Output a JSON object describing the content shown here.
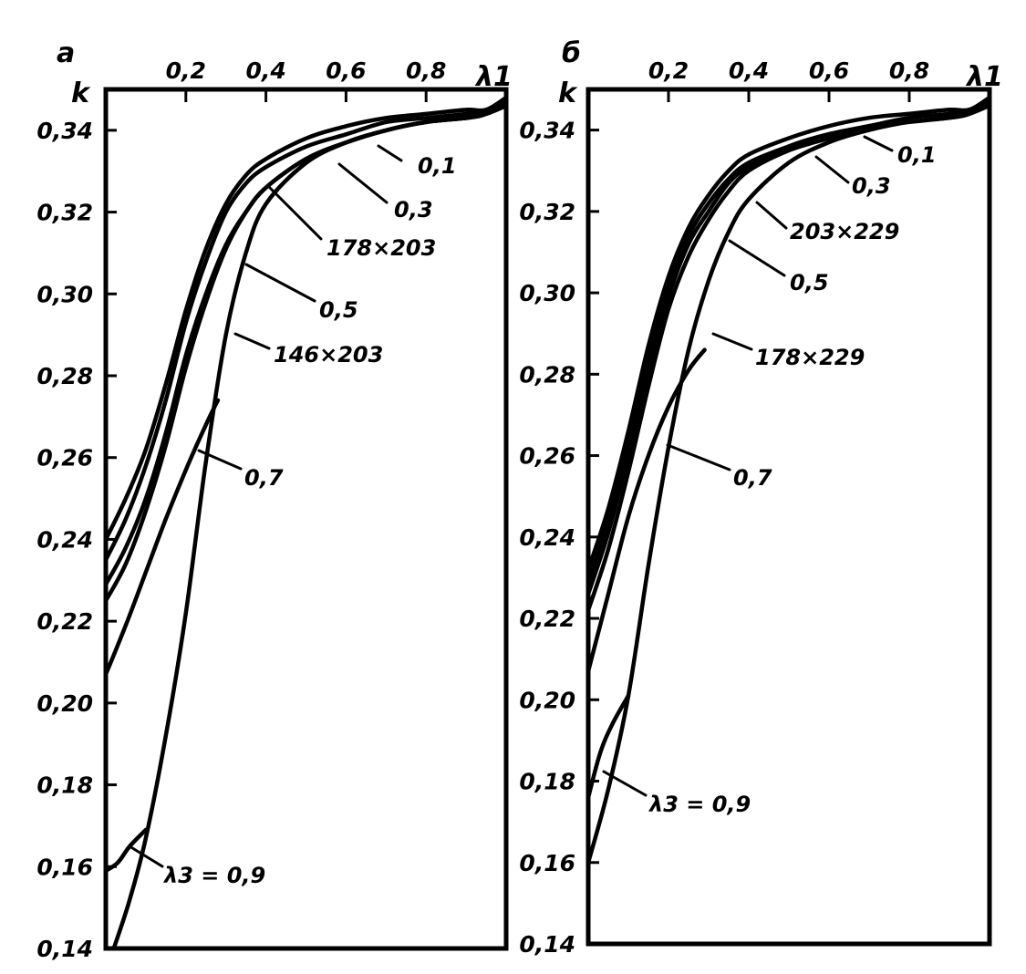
{
  "chart_data": [
    {
      "type": "line",
      "panel_label": "a",
      "xlabel": "λ1",
      "ylabel": "k",
      "xlim": [
        0,
        1.0
      ],
      "ylim": [
        0.14,
        0.35
      ],
      "x_ticks": [
        0.2,
        0.4,
        0.6,
        0.8
      ],
      "x_tick_labels": [
        "0,2",
        "0,4",
        "0,6",
        "0,8"
      ],
      "y_ticks": [
        0.14,
        0.16,
        0.18,
        0.2,
        0.22,
        0.24,
        0.26,
        0.28,
        0.3,
        0.32,
        0.34
      ],
      "y_tick_labels": [
        "0,14",
        "0,16",
        "0,18",
        "0,20",
        "0,22",
        "0,24",
        "0,26",
        "0,28",
        "0,30",
        "0,32",
        "0,34"
      ],
      "grid": false,
      "series": [
        {
          "name": "0,1",
          "x": [
            0,
            0.05,
            0.1,
            0.15,
            0.2,
            0.25,
            0.3,
            0.35,
            0.4,
            0.5,
            0.6,
            0.7,
            0.8,
            0.9,
            0.95,
            1.0
          ],
          "y": [
            0.24,
            0.25,
            0.262,
            0.278,
            0.296,
            0.311,
            0.322,
            0.329,
            0.333,
            0.338,
            0.341,
            0.343,
            0.344,
            0.345,
            0.345,
            0.348
          ]
        },
        {
          "name": "0,3",
          "x": [
            0,
            0.05,
            0.1,
            0.15,
            0.2,
            0.25,
            0.3,
            0.35,
            0.4,
            0.5,
            0.6,
            0.7,
            0.8,
            0.9,
            0.95,
            1.0
          ],
          "y": [
            0.235,
            0.245,
            0.258,
            0.274,
            0.293,
            0.308,
            0.32,
            0.327,
            0.331,
            0.336,
            0.339,
            0.342,
            0.343,
            0.344,
            0.345,
            0.347
          ]
        },
        {
          "name": "0,5",
          "x": [
            0,
            0.05,
            0.1,
            0.15,
            0.2,
            0.25,
            0.3,
            0.35,
            0.4,
            0.5,
            0.6,
            0.7,
            0.8,
            0.9,
            0.95,
            1.0
          ],
          "y": [
            0.229,
            0.238,
            0.25,
            0.266,
            0.285,
            0.3,
            0.312,
            0.32,
            0.326,
            0.333,
            0.337,
            0.34,
            0.342,
            0.343,
            0.344,
            0.347
          ]
        },
        {
          "name": "0,7",
          "x": [
            0,
            0.05,
            0.1,
            0.15,
            0.2,
            0.25,
            0.28
          ],
          "y": [
            0.207,
            0.219,
            0.232,
            0.245,
            0.257,
            0.268,
            0.274
          ]
        },
        {
          "name": "λ3 = 0,9",
          "x": [
            0,
            0.03,
            0.06,
            0.1
          ],
          "y": [
            0.159,
            0.161,
            0.165,
            0.169
          ]
        },
        {
          "name": "178×203",
          "x": [
            0,
            0.05,
            0.1,
            0.15,
            0.2,
            0.25,
            0.3,
            0.35,
            0.4,
            0.5,
            0.6,
            0.7,
            0.8,
            0.9,
            0.95,
            1.0
          ],
          "y": [
            0.225,
            0.234,
            0.247,
            0.263,
            0.282,
            0.298,
            0.311,
            0.32,
            0.326,
            0.333,
            0.337,
            0.34,
            0.342,
            0.343,
            0.344,
            0.346
          ]
        },
        {
          "name": "146×203",
          "x": [
            0.02,
            0.06,
            0.1,
            0.15,
            0.2,
            0.25,
            0.3,
            0.35,
            0.4,
            0.5,
            0.6,
            0.7,
            0.8,
            0.9,
            0.95,
            1.0
          ],
          "y": [
            0.14,
            0.152,
            0.167,
            0.192,
            0.222,
            0.259,
            0.29,
            0.31,
            0.322,
            0.332,
            0.337,
            0.34,
            0.342,
            0.343,
            0.344,
            0.346
          ]
        }
      ],
      "annotations": [
        "0,1",
        "0,3",
        "178×203",
        "0,5",
        "146×203",
        "0,7",
        "λ3 = 0,9"
      ]
    },
    {
      "type": "line",
      "panel_label": "б",
      "xlabel": "λ1",
      "ylabel": "k",
      "xlim": [
        0,
        1.0
      ],
      "ylim": [
        0.14,
        0.35
      ],
      "x_ticks": [
        0.2,
        0.4,
        0.6,
        0.8
      ],
      "x_tick_labels": [
        "0,2",
        "0,4",
        "0,6",
        "0,8"
      ],
      "y_ticks": [
        0.14,
        0.16,
        0.18,
        0.2,
        0.22,
        0.24,
        0.26,
        0.28,
        0.3,
        0.32,
        0.34
      ],
      "y_tick_labels": [
        "0,14",
        "0,16",
        "0,18",
        "0,20",
        "0,22",
        "0,24",
        "0,26",
        "0,28",
        "0,30",
        "0,32",
        "0,34"
      ],
      "grid": false,
      "series": [
        {
          "name": "0,1",
          "x": [
            0,
            0.05,
            0.1,
            0.15,
            0.2,
            0.25,
            0.3,
            0.35,
            0.4,
            0.5,
            0.6,
            0.7,
            0.8,
            0.9,
            0.95,
            1.0
          ],
          "y": [
            0.232,
            0.247,
            0.266,
            0.287,
            0.304,
            0.316,
            0.324,
            0.33,
            0.334,
            0.338,
            0.341,
            0.343,
            0.344,
            0.345,
            0.345,
            0.348
          ]
        },
        {
          "name": "0,3",
          "x": [
            0,
            0.05,
            0.1,
            0.15,
            0.2,
            0.25,
            0.3,
            0.35,
            0.4,
            0.5,
            0.6,
            0.7,
            0.8,
            0.9,
            0.95,
            1.0
          ],
          "y": [
            0.229,
            0.244,
            0.263,
            0.284,
            0.302,
            0.314,
            0.322,
            0.328,
            0.332,
            0.336,
            0.339,
            0.341,
            0.343,
            0.344,
            0.345,
            0.347
          ]
        },
        {
          "name": "0,5",
          "x": [
            0,
            0.05,
            0.1,
            0.15,
            0.2,
            0.25,
            0.3,
            0.35,
            0.4,
            0.5,
            0.6,
            0.7,
            0.8,
            0.9,
            0.95,
            1.0
          ],
          "y": [
            0.222,
            0.237,
            0.256,
            0.277,
            0.296,
            0.309,
            0.318,
            0.325,
            0.33,
            0.335,
            0.338,
            0.341,
            0.342,
            0.343,
            0.344,
            0.347
          ]
        },
        {
          "name": "0,7",
          "x": [
            0,
            0.05,
            0.1,
            0.15,
            0.2,
            0.25,
            0.29
          ],
          "y": [
            0.207,
            0.226,
            0.245,
            0.26,
            0.272,
            0.281,
            0.286
          ]
        },
        {
          "name": "λ3 = 0,9",
          "x": [
            0,
            0.03,
            0.06,
            0.1
          ],
          "y": [
            0.176,
            0.187,
            0.194,
            0.201
          ]
        },
        {
          "name": "203×229",
          "x": [
            0,
            0.05,
            0.1,
            0.15,
            0.2,
            0.25,
            0.3,
            0.35,
            0.4,
            0.5,
            0.6,
            0.7,
            0.8,
            0.9,
            0.95,
            1.0
          ],
          "y": [
            0.226,
            0.241,
            0.26,
            0.281,
            0.299,
            0.312,
            0.32,
            0.327,
            0.331,
            0.336,
            0.339,
            0.341,
            0.343,
            0.344,
            0.345,
            0.346
          ]
        },
        {
          "name": "178×229",
          "x": [
            0,
            0.05,
            0.1,
            0.15,
            0.2,
            0.25,
            0.3,
            0.35,
            0.4,
            0.5,
            0.6,
            0.7,
            0.8,
            0.9,
            0.95,
            1.0
          ],
          "y": [
            0.16,
            0.178,
            0.201,
            0.233,
            0.262,
            0.286,
            0.303,
            0.315,
            0.323,
            0.332,
            0.337,
            0.34,
            0.342,
            0.343,
            0.344,
            0.346
          ]
        }
      ],
      "annotations": [
        "0,1",
        "0,3",
        "203×229",
        "0,5",
        "178×229",
        "0,7",
        "λ3 = 0,9"
      ]
    }
  ]
}
